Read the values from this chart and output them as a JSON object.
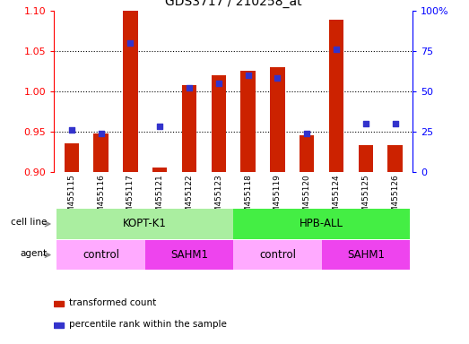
{
  "title": "GDS3717 / 210258_at",
  "samples": [
    "GSM455115",
    "GSM455116",
    "GSM455117",
    "GSM455121",
    "GSM455122",
    "GSM455123",
    "GSM455118",
    "GSM455119",
    "GSM455120",
    "GSM455124",
    "GSM455125",
    "GSM455126"
  ],
  "transformed_counts": [
    0.935,
    0.948,
    1.1,
    0.905,
    1.007,
    1.02,
    1.025,
    1.03,
    0.945,
    1.088,
    0.933,
    0.933
  ],
  "percentile_ranks": [
    26,
    24,
    80,
    28,
    52,
    55,
    60,
    58,
    24,
    76,
    30,
    30
  ],
  "ylim_left": [
    0.9,
    1.1
  ],
  "ylim_right": [
    0,
    100
  ],
  "yticks_left": [
    0.9,
    0.95,
    1.0,
    1.05,
    1.1
  ],
  "yticks_right": [
    0,
    25,
    50,
    75,
    100
  ],
  "ytick_labels_right": [
    "0",
    "25",
    "50",
    "75",
    "100%"
  ],
  "bar_color": "#cc2200",
  "dot_color": "#3333cc",
  "plot_bg": "#ffffff",
  "tick_area_bg": "#cccccc",
  "cell_line_groups": [
    {
      "label": "KOPT-K1",
      "start": 0,
      "end": 5,
      "color": "#aaeea a"
    },
    {
      "label": "HPB-ALL",
      "start": 6,
      "end": 11,
      "color": "#44ee44"
    }
  ],
  "agent_groups": [
    {
      "label": "control",
      "start": 0,
      "end": 2,
      "color": "#ffaaff"
    },
    {
      "label": "SAHM1",
      "start": 3,
      "end": 5,
      "color": "#ee44ee"
    },
    {
      "label": "control",
      "start": 6,
      "end": 8,
      "color": "#ffaaff"
    },
    {
      "label": "SAHM1",
      "start": 9,
      "end": 11,
      "color": "#ee44ee"
    }
  ],
  "legend_bar_label": "transformed count",
  "legend_dot_label": "percentile rank within the sample"
}
